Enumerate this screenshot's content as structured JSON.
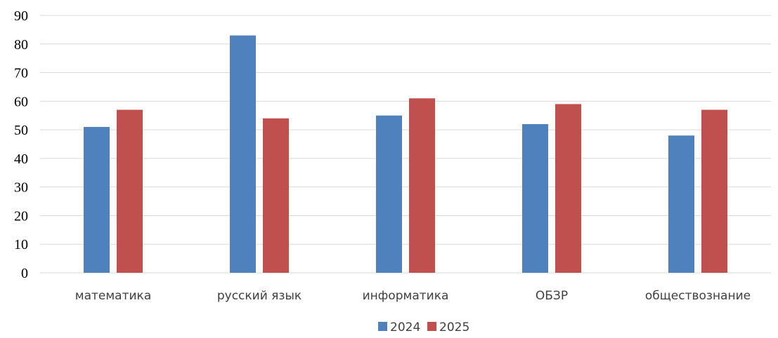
{
  "chart_data": {
    "type": "bar",
    "title": "",
    "xlabel": "",
    "ylabel": "",
    "ylim": [
      0,
      90
    ],
    "yticks": [
      0,
      10,
      20,
      30,
      40,
      50,
      60,
      70,
      80,
      90
    ],
    "grid": true,
    "legend_position": "bottom",
    "categories": [
      "математика",
      "русский язык",
      "информатика",
      "ОБЗР",
      "обществознание"
    ],
    "series": [
      {
        "name": "2024",
        "color": "#4f81bd",
        "values": [
          51,
          83,
          55,
          52,
          48
        ]
      },
      {
        "name": "2025",
        "color": "#c0504d",
        "values": [
          57,
          54,
          61,
          59,
          57
        ]
      }
    ]
  }
}
